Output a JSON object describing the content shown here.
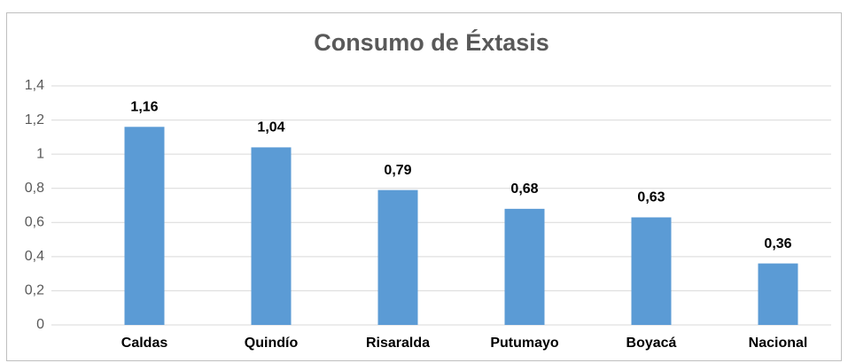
{
  "chart_data": {
    "type": "bar",
    "title": "Consumo de Éxtasis",
    "categories": [
      "Caldas",
      "Quindío",
      "Risaralda",
      "Putumayo",
      "Boyacá",
      "Nacional"
    ],
    "values": [
      1.16,
      1.04,
      0.79,
      0.68,
      0.63,
      0.36
    ],
    "value_labels": [
      "1,16",
      "1,04",
      "0,79",
      "0,68",
      "0,63",
      "0,36"
    ],
    "color": "#5b9bd5",
    "ylim": [
      0,
      1.4
    ],
    "yticks": [
      0,
      {
        "value": 0.2,
        "label": "0,2"
      },
      {
        "value": 0.4,
        "label": "0,4"
      },
      {
        "value": 0.6,
        "label": "0,6"
      },
      {
        "value": 0.8,
        "label": "0,8"
      },
      1,
      {
        "value": 1.2,
        "label": "1,2"
      },
      {
        "value": 1.4,
        "label": "1,4"
      }
    ],
    "grid": true
  }
}
